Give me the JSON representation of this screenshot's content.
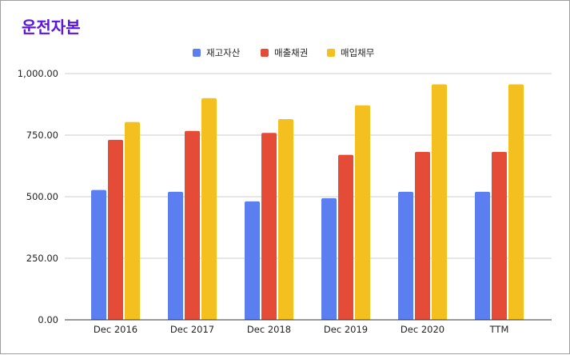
{
  "chart_data": {
    "type": "bar",
    "title": "운전자본",
    "title_color": "#5a14e6",
    "categories": [
      "Dec 2016",
      "Dec 2017",
      "Dec 2018",
      "Dec 2019",
      "Dec 2020",
      "TTM"
    ],
    "series": [
      {
        "name": "재고자산",
        "color": "#5b7ff0",
        "values": [
          527,
          520,
          481,
          494,
          520,
          520
        ]
      },
      {
        "name": "매출채권",
        "color": "#e44c37",
        "values": [
          731,
          767,
          759,
          670,
          682,
          682
        ]
      },
      {
        "name": "매입채무",
        "color": "#f4c020",
        "values": [
          803,
          900,
          815,
          871,
          956,
          956
        ]
      }
    ],
    "ylim": [
      0,
      1000
    ],
    "yticks": [
      "0.00",
      "250.00",
      "500.00",
      "750.00",
      "1,000.00"
    ],
    "ytick_values": [
      0,
      250,
      500,
      750,
      1000
    ],
    "grid": true,
    "legend_position": "top-center",
    "xlabel": "",
    "ylabel": ""
  }
}
